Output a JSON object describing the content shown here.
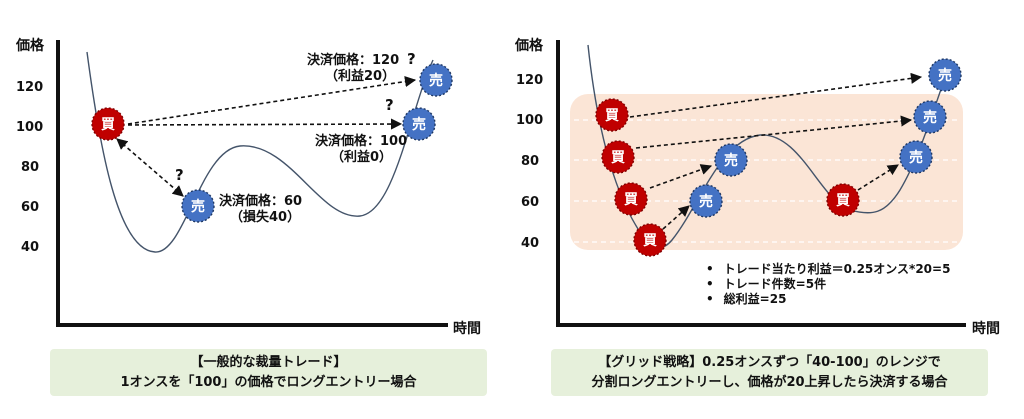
{
  "left_panel": {
    "y_axis_label": "価格",
    "x_axis_label": "時間",
    "y_ticks": [
      "120",
      "100",
      "80",
      "60",
      "40"
    ],
    "buy_label": "買",
    "sell_label": "売",
    "question_mark": "?",
    "annotations": {
      "sell_120": [
        "決済価格：120",
        "（利益20）"
      ],
      "sell_100": [
        "決済価格：100",
        "（利益0）"
      ],
      "sell_60": [
        "決済価格：60",
        "（損失40）"
      ]
    },
    "caption": [
      "【一般的な裁量トレード】",
      "1オンスを「100」の価格でロングエントリー場合"
    ]
  },
  "right_panel": {
    "y_axis_label": "価格",
    "x_axis_label": "時間",
    "y_ticks": [
      "120",
      "100",
      "80",
      "60",
      "40"
    ],
    "buy_label": "買",
    "sell_label": "売",
    "bullets": [
      "トレード当たり利益＝0.25オンス*20=5",
      "トレード件数=5件",
      "総利益=25"
    ],
    "caption": [
      "【グリッド戦略】0.25オンスずつ「40-100」のレンジで",
      "分割ロングエントリーし、価格が20上昇したら決済する場合"
    ]
  },
  "colors": {
    "buy": "#c00000",
    "sell": "#4472c4",
    "price_line": "#44546a",
    "range_band": "#fbe5d6",
    "caption_bg": "#e6f0db"
  }
}
